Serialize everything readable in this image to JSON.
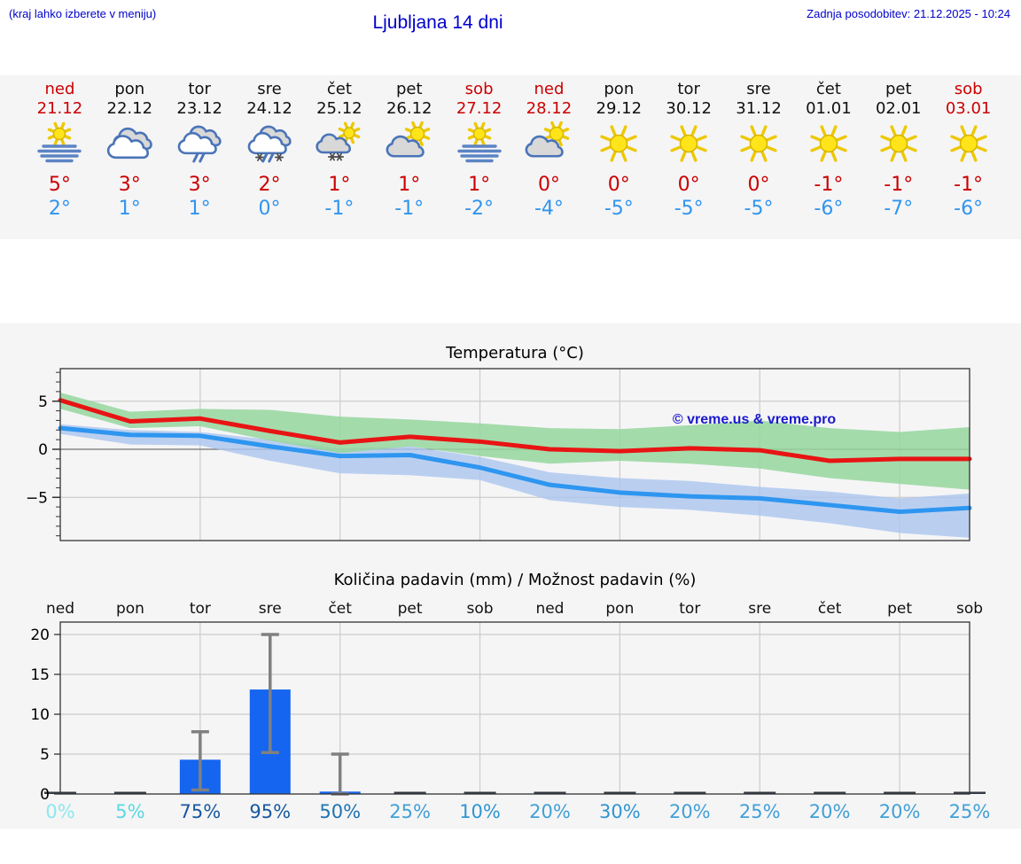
{
  "header": {
    "hint": "(kraj lahko izberete v meniju)",
    "title": "Ljubljana 14 dni",
    "updated": "Zadnja posodobitev: 21.12.2025 - 10:24"
  },
  "forecast_days": [
    {
      "name": "ned",
      "date": "21.12",
      "highlight": true,
      "icon": "fog-sun",
      "tmax": "5°",
      "tmin": "2°"
    },
    {
      "name": "pon",
      "date": "22.12",
      "highlight": false,
      "icon": "cloudy",
      "tmax": "3°",
      "tmin": "1°"
    },
    {
      "name": "tor",
      "date": "23.12",
      "highlight": false,
      "icon": "rain",
      "tmax": "3°",
      "tmin": "1°"
    },
    {
      "name": "sre",
      "date": "24.12",
      "highlight": false,
      "icon": "sleet",
      "tmax": "2°",
      "tmin": "0°"
    },
    {
      "name": "čet",
      "date": "25.12",
      "highlight": false,
      "icon": "snow-sun",
      "tmax": "1°",
      "tmin": "-1°"
    },
    {
      "name": "pet",
      "date": "26.12",
      "highlight": false,
      "icon": "sun-cloud",
      "tmax": "1°",
      "tmin": "-1°"
    },
    {
      "name": "sob",
      "date": "27.12",
      "highlight": true,
      "icon": "fog-sun",
      "tmax": "1°",
      "tmin": "-2°"
    },
    {
      "name": "ned",
      "date": "28.12",
      "highlight": true,
      "icon": "sun-cloud",
      "tmax": "0°",
      "tmin": "-4°"
    },
    {
      "name": "pon",
      "date": "29.12",
      "highlight": false,
      "icon": "sunny",
      "tmax": "0°",
      "tmin": "-5°"
    },
    {
      "name": "tor",
      "date": "30.12",
      "highlight": false,
      "icon": "sunny",
      "tmax": "0°",
      "tmin": "-5°"
    },
    {
      "name": "sre",
      "date": "31.12",
      "highlight": false,
      "icon": "sunny",
      "tmax": "0°",
      "tmin": "-5°"
    },
    {
      "name": "čet",
      "date": "01.01",
      "highlight": false,
      "icon": "sunny",
      "tmax": "-1°",
      "tmin": "-6°"
    },
    {
      "name": "pet",
      "date": "02.01",
      "highlight": false,
      "icon": "sunny",
      "tmax": "-1°",
      "tmin": "-7°"
    },
    {
      "name": "sob",
      "date": "03.01",
      "highlight": true,
      "icon": "sunny",
      "tmax": "-1°",
      "tmin": "-6°"
    }
  ],
  "chart_data": [
    {
      "type": "line",
      "title": "Temperatura (°C)",
      "watermark": "© vreme.us & vreme.pro",
      "categories": [
        "ned 21.12",
        "pon 22.12",
        "tor 23.12",
        "sre 24.12",
        "čet 25.12",
        "pet 26.12",
        "sob 27.12",
        "ned 28.12",
        "pon 29.12",
        "tor 30.12",
        "sre 31.12",
        "čet 01.01",
        "pet 02.01",
        "sob 03.01"
      ],
      "ylim": [
        -9.5,
        8.4
      ],
      "yticks": [
        {
          "v": 5,
          "label": "5"
        },
        {
          "v": 0,
          "label": "0"
        },
        {
          "v": -5,
          "label": "−5"
        }
      ],
      "grid": true,
      "series": [
        {
          "name": "max-temp",
          "color": "#e81414",
          "band_color": "#95d69e",
          "values": [
            5.1,
            2.9,
            3.2,
            1.9,
            0.7,
            1.3,
            0.8,
            0.0,
            -0.2,
            0.1,
            -0.1,
            -1.2,
            -1.0,
            -1.0
          ],
          "band_upper": [
            5.9,
            3.9,
            4.2,
            4.1,
            3.4,
            3.1,
            2.7,
            2.2,
            2.1,
            2.5,
            3.0,
            2.2,
            1.8,
            2.3
          ],
          "band_lower": [
            4.2,
            2.2,
            2.4,
            0.9,
            -0.4,
            0.3,
            -0.7,
            -1.5,
            -1.2,
            -1.5,
            -2.0,
            -3.0,
            -3.6,
            -4.2
          ]
        },
        {
          "name": "min-temp",
          "color": "#2e96f0",
          "band_color": "#abc6ef",
          "values": [
            2.2,
            1.5,
            1.4,
            0.3,
            -0.7,
            -0.6,
            -1.9,
            -3.7,
            -4.5,
            -4.9,
            -5.1,
            -5.8,
            -6.5,
            -6.1
          ],
          "band_upper": [
            2.6,
            2.0,
            1.8,
            1.0,
            0.1,
            0.3,
            -0.8,
            -2.4,
            -3.0,
            -3.3,
            -3.9,
            -4.4,
            -5.1,
            -4.6
          ],
          "band_lower": [
            1.6,
            0.5,
            0.4,
            -1.2,
            -2.5,
            -2.7,
            -3.2,
            -5.3,
            -6.0,
            -6.3,
            -6.9,
            -7.7,
            -8.7,
            -9.2
          ]
        }
      ]
    },
    {
      "type": "bar",
      "title": "Količina padavin (mm) / Možnost padavin (%)",
      "categories": [
        "ned",
        "pon",
        "tor",
        "sre",
        "čet",
        "pet",
        "sob",
        "ned",
        "pon",
        "tor",
        "sre",
        "čet",
        "pet",
        "sob"
      ],
      "values": [
        0,
        0,
        4.3,
        13.1,
        0.3,
        0,
        0,
        0,
        0,
        0,
        0,
        0,
        0,
        0
      ],
      "whisker_low": [
        null,
        null,
        0.5,
        5.2,
        0.0,
        null,
        null,
        null,
        null,
        null,
        null,
        null,
        null,
        null
      ],
      "whisker_high": [
        null,
        null,
        7.8,
        20.0,
        5.0,
        null,
        null,
        null,
        null,
        null,
        null,
        null,
        null,
        null
      ],
      "ylim": [
        0,
        21.5
      ],
      "yticks": [
        {
          "v": 0,
          "label": "0"
        },
        {
          "v": 5,
          "label": "5"
        },
        {
          "v": 10,
          "label": "10"
        },
        {
          "v": 15,
          "label": "15"
        },
        {
          "v": 20,
          "label": "20"
        }
      ],
      "grid": true,
      "percent_labels": [
        "0%",
        "5%",
        "75%",
        "95%",
        "50%",
        "25%",
        "10%",
        "20%",
        "30%",
        "20%",
        "25%",
        "20%",
        "20%",
        "25%"
      ],
      "percent_colors": [
        "#8ee7ee",
        "#5cd7e2",
        "#17589f",
        "#17589f",
        "#1c73b2",
        "#42a0d6",
        "#2e95d1",
        "#42a0d6",
        "#2f96d1",
        "#42a0d6",
        "#42a0d6",
        "#42a0d6",
        "#42a0d6",
        "#42a0d6"
      ]
    }
  ],
  "colors": {
    "page_bg": "#ffffff",
    "panel_bg": "#f5f5f6",
    "header_text": "#0000cc",
    "day_red": "#cc0000",
    "day_black": "#111111",
    "tmax_text": "#cc0000",
    "tmin_text": "#3095ef",
    "max_line": "#e81414",
    "min_line": "#2e96f0",
    "max_band": "#95d69e",
    "min_band": "#abc6ef",
    "bar": "#1565f0",
    "whisker": "#808080",
    "grid": "#cccccc",
    "axis": "#333333",
    "zero_line": "#707070",
    "zero_mark": "#333a44",
    "watermark": "#1a1acc",
    "icon_sun": "#ffe41a",
    "icon_sun_stroke": "#d8b500",
    "icon_ray": "#edc900",
    "icon_cloud_stroke": "#4a74b8",
    "icon_cloud_gray": "#d8d8d8",
    "icon_cloud_white": "#ffffff",
    "icon_fog_line": "#5b84c4",
    "icon_snow": "#4a4a4a"
  }
}
